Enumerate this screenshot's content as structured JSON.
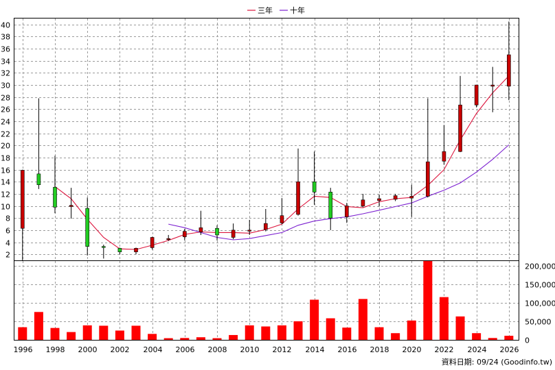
{
  "legend": {
    "ma3": {
      "label": "三年",
      "color": "#dc143c"
    },
    "ma10": {
      "label": "十年",
      "color": "#7b1fd0"
    }
  },
  "footer_text": "資料日期: 09/24  (Goodinfo.tw)",
  "colors": {
    "up": "#c80000",
    "down": "#22cc22",
    "volume": "#ff0000",
    "wick": "#000000"
  },
  "chart_data": [
    {
      "type": "candlestick",
      "x_ticks": [
        "1996",
        "1998",
        "2000",
        "2002",
        "2004",
        "2006",
        "2008",
        "2010",
        "2012",
        "2014",
        "2016",
        "2018",
        "2020",
        "2022",
        "2024",
        "2026"
      ],
      "xlim": [
        1995.5,
        2026.6
      ],
      "ylim": [
        1,
        41
      ],
      "y_ticks": [
        2,
        4,
        6,
        8,
        10,
        12,
        14,
        16,
        18,
        20,
        22,
        24,
        26,
        28,
        30,
        32,
        34,
        36,
        38,
        40
      ],
      "grid": true,
      "candles": [
        {
          "year": 1996,
          "open": 6.3,
          "high": 16.0,
          "low": 1.0,
          "close": 15.9
        },
        {
          "year": 1997,
          "open": 15.3,
          "high": 27.8,
          "low": 12.8,
          "close": 13.5
        },
        {
          "year": 1998,
          "open": 13.1,
          "high": 18.3,
          "low": 8.8,
          "close": 9.8
        },
        {
          "year": 1999,
          "open": 9.9,
          "high": 13.0,
          "low": 7.9,
          "close": 10.1
        },
        {
          "year": 2000,
          "open": 9.6,
          "high": 11.4,
          "low": 1.8,
          "close": 3.3
        },
        {
          "year": 2001,
          "open": 3.3,
          "high": 3.6,
          "low": 1.3,
          "close": 3.2
        },
        {
          "year": 2002,
          "open": 3.0,
          "high": 3.1,
          "low": 2.0,
          "close": 2.4
        },
        {
          "year": 2003,
          "open": 2.4,
          "high": 3.1,
          "low": 2.0,
          "close": 3.0
        },
        {
          "year": 2004,
          "open": 3.1,
          "high": 4.9,
          "low": 2.8,
          "close": 4.8
        },
        {
          "year": 2005,
          "open": 4.5,
          "high": 5.2,
          "low": 4.2,
          "close": 4.6
        },
        {
          "year": 2006,
          "open": 4.9,
          "high": 6.2,
          "low": 4.3,
          "close": 5.8
        },
        {
          "year": 2007,
          "open": 5.7,
          "high": 9.2,
          "low": 5.2,
          "close": 6.4
        },
        {
          "year": 2008,
          "open": 6.3,
          "high": 6.8,
          "low": 4.3,
          "close": 5.2
        },
        {
          "year": 2009,
          "open": 4.8,
          "high": 7.1,
          "low": 4.5,
          "close": 6.0
        },
        {
          "year": 2010,
          "open": 5.9,
          "high": 7.7,
          "low": 5.2,
          "close": 6.0
        },
        {
          "year": 2011,
          "open": 6.1,
          "high": 9.5,
          "low": 5.8,
          "close": 7.1
        },
        {
          "year": 2012,
          "open": 7.2,
          "high": 11.3,
          "low": 7.0,
          "close": 8.4
        },
        {
          "year": 2013,
          "open": 8.6,
          "high": 19.5,
          "low": 8.4,
          "close": 14.0
        },
        {
          "year": 2014,
          "open": 14.0,
          "high": 19.0,
          "low": 10.2,
          "close": 12.3
        },
        {
          "year": 2015,
          "open": 12.3,
          "high": 13.0,
          "low": 6.0,
          "close": 8.0
        },
        {
          "year": 2016,
          "open": 8.2,
          "high": 10.5,
          "low": 7.2,
          "close": 10.0
        },
        {
          "year": 2017,
          "open": 10.0,
          "high": 12.0,
          "low": 9.8,
          "close": 11.0
        },
        {
          "year": 2018,
          "open": 10.9,
          "high": 11.9,
          "low": 9.9,
          "close": 11.2
        },
        {
          "year": 2019,
          "open": 11.1,
          "high": 12.0,
          "low": 10.8,
          "close": 11.7
        },
        {
          "year": 2020,
          "open": 11.3,
          "high": 13.5,
          "low": 8.2,
          "close": 11.6
        },
        {
          "year": 2021,
          "open": 11.6,
          "high": 27.8,
          "low": 11.4,
          "close": 17.3
        },
        {
          "year": 2022,
          "open": 17.4,
          "high": 23.4,
          "low": 16.8,
          "close": 19.0
        },
        {
          "year": 2023,
          "open": 19.0,
          "high": 31.5,
          "low": 18.9,
          "close": 26.7
        },
        {
          "year": 2024,
          "open": 26.7,
          "high": 30.0,
          "low": 26.3,
          "close": 30.0
        },
        {
          "year": 2025,
          "open": 29.8,
          "high": 33.0,
          "low": 25.5,
          "close": 30.0
        },
        {
          "year": 2026,
          "open": 29.8,
          "high": 40.5,
          "low": 27.5,
          "close": 35.0
        }
      ],
      "series": [
        {
          "name": "三年",
          "values": [
            [
              1998,
              13.2
            ],
            [
              1999,
              11.2
            ],
            [
              2000,
              7.8
            ],
            [
              2001,
              4.8
            ],
            [
              2002,
              2.9
            ],
            [
              2003,
              2.8
            ],
            [
              2004,
              3.5
            ],
            [
              2005,
              4.3
            ],
            [
              2006,
              5.3
            ],
            [
              2007,
              5.7
            ],
            [
              2008,
              5.6
            ],
            [
              2009,
              5.6
            ],
            [
              2010,
              5.5
            ],
            [
              2011,
              6.1
            ],
            [
              2012,
              7.0
            ],
            [
              2013,
              9.5
            ],
            [
              2014,
              11.6
            ],
            [
              2015,
              11.4
            ],
            [
              2016,
              9.9
            ],
            [
              2017,
              9.7
            ],
            [
              2018,
              10.7
            ],
            [
              2019,
              11.2
            ],
            [
              2020,
              11.4
            ],
            [
              2021,
              13.4
            ],
            [
              2022,
              16.0
            ],
            [
              2023,
              20.9
            ],
            [
              2024,
              25.3
            ],
            [
              2025,
              28.7
            ],
            [
              2026,
              31.5
            ]
          ]
        },
        {
          "name": "十年",
          "values": [
            [
              2005,
              7.0
            ],
            [
              2006,
              6.4
            ],
            [
              2007,
              5.6
            ],
            [
              2008,
              4.8
            ],
            [
              2009,
              4.4
            ],
            [
              2010,
              4.6
            ],
            [
              2011,
              5.1
            ],
            [
              2012,
              5.6
            ],
            [
              2013,
              6.8
            ],
            [
              2014,
              7.5
            ],
            [
              2015,
              7.9
            ],
            [
              2016,
              8.2
            ],
            [
              2017,
              8.7
            ],
            [
              2018,
              9.3
            ],
            [
              2019,
              9.9
            ],
            [
              2020,
              10.5
            ],
            [
              2021,
              11.6
            ],
            [
              2022,
              12.6
            ],
            [
              2023,
              13.8
            ],
            [
              2024,
              15.6
            ],
            [
              2025,
              17.7
            ],
            [
              2026,
              20.1
            ]
          ]
        }
      ]
    },
    {
      "type": "bar",
      "ylim": [
        0,
        212000
      ],
      "y_ticks": [
        0,
        50000,
        100000,
        150000,
        200000
      ],
      "y_tick_labels": [
        "0",
        "50,000",
        "100,000",
        "150,000",
        "200,000"
      ],
      "categories": [
        1996,
        1997,
        1998,
        1999,
        2000,
        2001,
        2002,
        2003,
        2004,
        2005,
        2006,
        2007,
        2008,
        2009,
        2010,
        2011,
        2012,
        2013,
        2014,
        2015,
        2016,
        2017,
        2018,
        2019,
        2020,
        2021,
        2022,
        2023,
        2024,
        2025,
        2026
      ],
      "values": [
        34000,
        75000,
        32000,
        21000,
        39000,
        38000,
        25000,
        38000,
        16000,
        4500,
        5000,
        7000,
        4500,
        13000,
        39000,
        36000,
        39000,
        50000,
        108000,
        58000,
        33000,
        110000,
        34000,
        18000,
        52000,
        212000,
        115000,
        63000,
        18000,
        5000,
        11000
      ]
    }
  ]
}
